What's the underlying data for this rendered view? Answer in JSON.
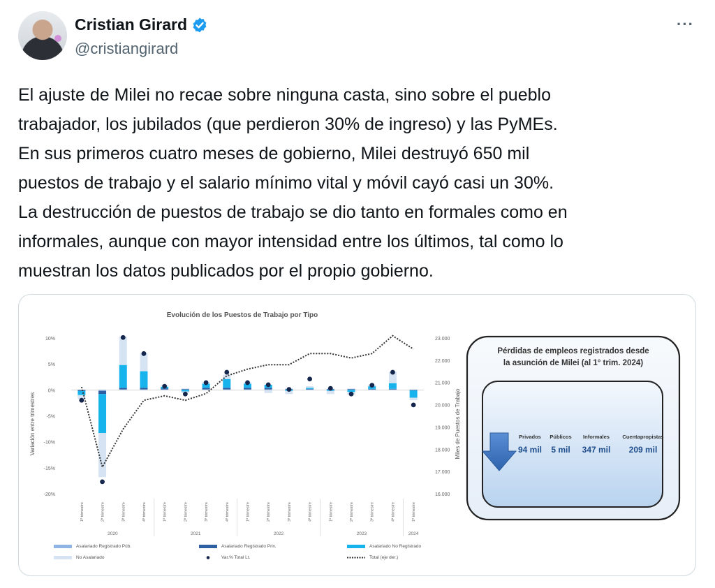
{
  "author": {
    "display_name": "Cristian Girard",
    "handle": "@cristiangirard",
    "verified_icon": "verified-badge-icon",
    "more_label": "···"
  },
  "tweet": {
    "lines": [
      "El ajuste de Milei no recae sobre ninguna casta, sino sobre el pueblo",
      "trabajador, los jubilados (que perdieron 30% de ingreso) y las PyMEs.",
      "En sus primeros cuatro meses de gobierno, Milei destruyó 650 mil",
      "puestos de trabajo y el salario mínimo vital y móvil cayó casi un 30%.",
      "La destrucción de puestos de trabajo se dio tanto en formales como en",
      "informales, aunque con mayor intensidad entre los últimos, tal como lo",
      "muestran los datos publicados por el propio gobierno."
    ]
  },
  "chart_data": {
    "type": "bar",
    "title": "Evolución de los Puestos de Trabajo por Tipo",
    "ylabel": "Variación entre trimestres",
    "y2label": "Miles de Puestos de Trabajo",
    "ylim": [
      -20,
      10
    ],
    "y2lim": [
      16000,
      23000
    ],
    "yticks": [
      "10%",
      "5%",
      "0%",
      "-5%",
      "-10%",
      "-15%",
      "-20%"
    ],
    "y2ticks": [
      "23.000",
      "22.000",
      "21.000",
      "20.000",
      "19.000",
      "18.000",
      "17.000",
      "16.000"
    ],
    "categories": [
      "1º trimestre",
      "2º trimestre",
      "3º trimestre",
      "4º trimestre",
      "1º trimestre",
      "2º trimestre",
      "3º trimestre",
      "4º trimestre",
      "1º trimestre",
      "2º trimestre",
      "3º trimestre",
      "4º trimestre",
      "1º trimestre",
      "2º trimestre",
      "3º trimestre",
      "4º trimestre",
      "1º trimestre"
    ],
    "years": [
      {
        "label": "2020",
        "from": 0,
        "to": 3
      },
      {
        "label": "2021",
        "from": 4,
        "to": 7
      },
      {
        "label": "2022",
        "from": 8,
        "to": 11
      },
      {
        "label": "2023",
        "from": 12,
        "to": 15
      },
      {
        "label": "2024",
        "from": 16,
        "to": 16
      }
    ],
    "series": [
      {
        "name": "Asalariado Registrado Púb.",
        "color": "#8fb4e3",
        "values": [
          0.0,
          -0.2,
          0.1,
          0.1,
          0.1,
          0.1,
          0.1,
          0.1,
          0.1,
          0.1,
          0.1,
          0.1,
          0.1,
          0.1,
          0.1,
          0.1,
          0.0
        ]
      },
      {
        "name": "Asalariado Registrado Priv.",
        "color": "#2e5fa3",
        "values": [
          -0.2,
          -0.6,
          0.3,
          0.3,
          0.2,
          0.1,
          0.3,
          0.3,
          0.3,
          0.3,
          0.1,
          0.1,
          0.1,
          0.1,
          0.1,
          0.1,
          -0.1
        ]
      },
      {
        "name": "Asalariado No Registrado",
        "color": "#17b3ec",
        "values": [
          -0.8,
          -7.5,
          4.4,
          3.2,
          0.3,
          -0.3,
          0.8,
          1.7,
          0.8,
          0.6,
          -0.2,
          0.2,
          -0.2,
          -0.4,
          0.5,
          1.1,
          -1.4
        ]
      },
      {
        "name": "No Asalariado",
        "color": "#d5e3f2",
        "values": [
          -0.7,
          -8.5,
          5.5,
          3.5,
          0.3,
          -0.3,
          0.3,
          0.8,
          0.3,
          -0.6,
          -0.6,
          0.3,
          -0.6,
          -0.5,
          0.3,
          2.2,
          -0.5
        ]
      }
    ],
    "var_total": {
      "name": "Var.% Total Lt.",
      "values": [
        -2.0,
        -17.7,
        10.1,
        7.0,
        0.7,
        -0.8,
        1.4,
        3.4,
        1.4,
        1.0,
        0.1,
        2.1,
        0.3,
        -0.8,
        0.9,
        3.4,
        -2.9
      ]
    },
    "total": {
      "name": "Total (eje der.)",
      "values": [
        20.8,
        17.2,
        18.9,
        20.2,
        20.4,
        20.2,
        20.5,
        21.3,
        21.6,
        21.8,
        21.8,
        22.3,
        22.3,
        22.1,
        22.3,
        23.1,
        22.5
      ]
    },
    "legend_position": "bottom"
  },
  "info_box": {
    "title_line1": "Pérdidas de empleos registrados desde",
    "title_line2": "la asunción de Milei (al 1° trim. 2024)",
    "icon": "arrow-down-icon",
    "columns": [
      {
        "label": "Privados",
        "value": "94 mil"
      },
      {
        "label": "Públicos",
        "value": "5 mil"
      },
      {
        "label": "Informales",
        "value": "347 mil"
      },
      {
        "label": "Cuentapropistas",
        "value": "209 mil"
      }
    ]
  }
}
